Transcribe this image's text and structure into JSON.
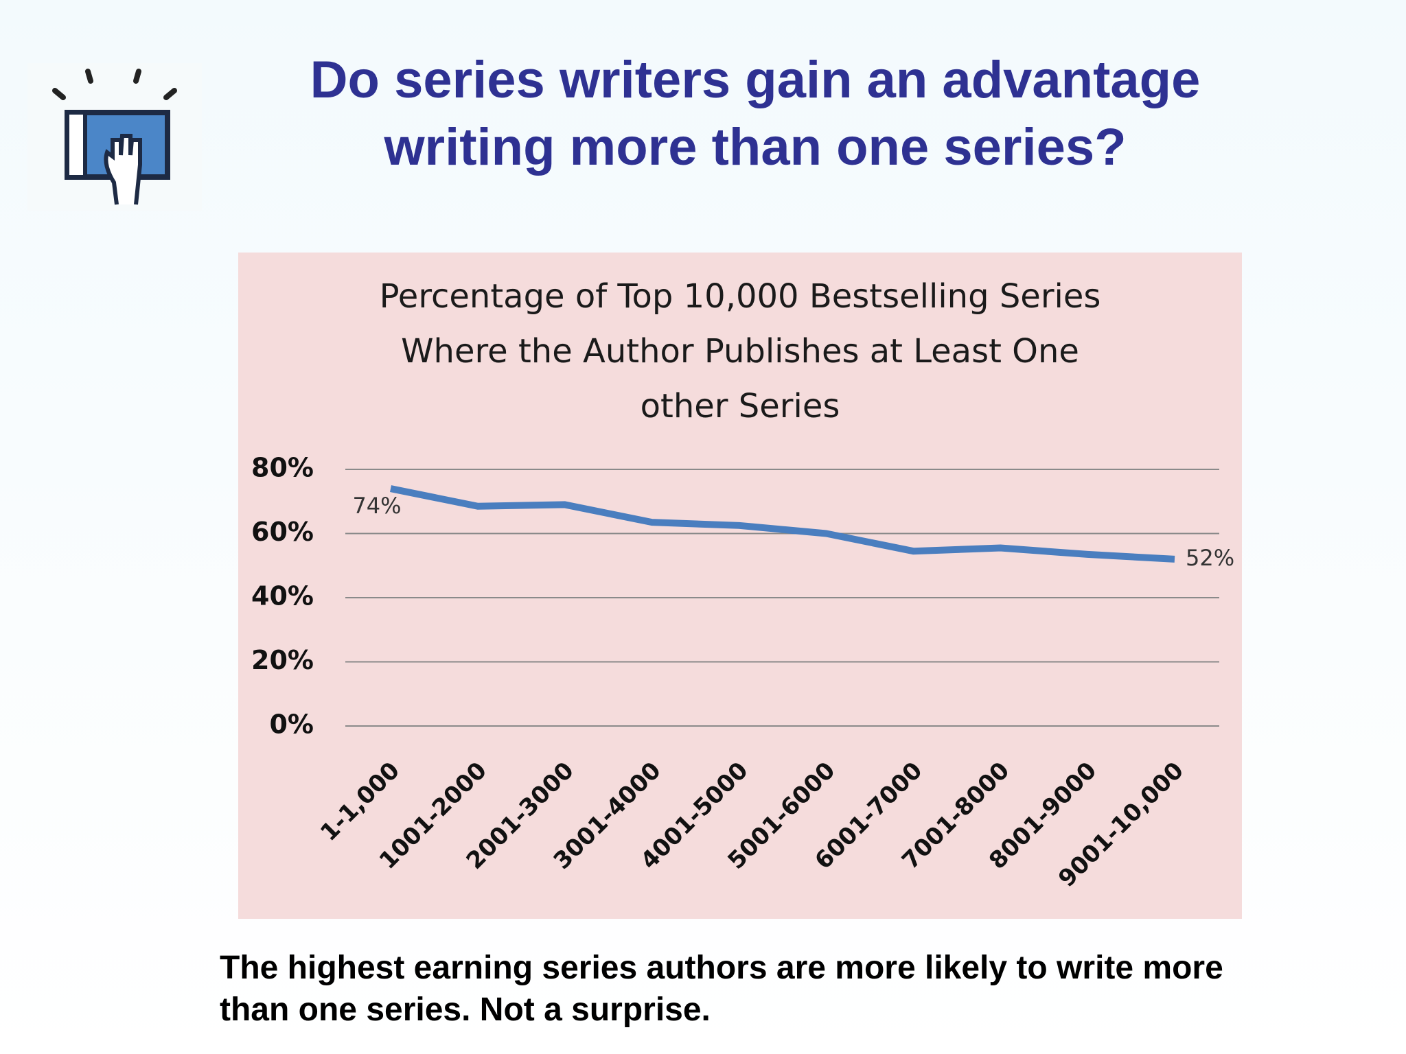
{
  "title": "Do series writers gain an advantage writing more than one series?",
  "chart_data": {
    "type": "line",
    "title": "Percentage of Top 10,000 Bestselling Series Where the Author Publishes at Least One other Series",
    "categories": [
      "1-1,000",
      "1001-2000",
      "2001-3000",
      "3001-4000",
      "4001-5000",
      "5001-6000",
      "6001-7000",
      "7001-8000",
      "8001-9000",
      "9001-10,000"
    ],
    "series": [
      {
        "color": "#4a7ebf",
        "values": [
          74,
          68.5,
          69,
          63.5,
          62.5,
          60,
          54.5,
          55.5,
          53.5,
          52
        ],
        "value_labels": [
          "74%",
          null,
          null,
          null,
          null,
          null,
          null,
          null,
          null,
          "52%"
        ]
      }
    ],
    "ylim": [
      0,
      80
    ],
    "yticks": [
      {
        "value": 0,
        "label": "0%"
      },
      {
        "value": 20,
        "label": "20%"
      },
      {
        "value": 40,
        "label": "40%"
      },
      {
        "value": 60,
        "label": "60%"
      },
      {
        "value": 80,
        "label": "80%"
      }
    ],
    "grid": true
  },
  "caption": "The highest earning series authors are more likely to write more than one series.  Not a surprise."
}
